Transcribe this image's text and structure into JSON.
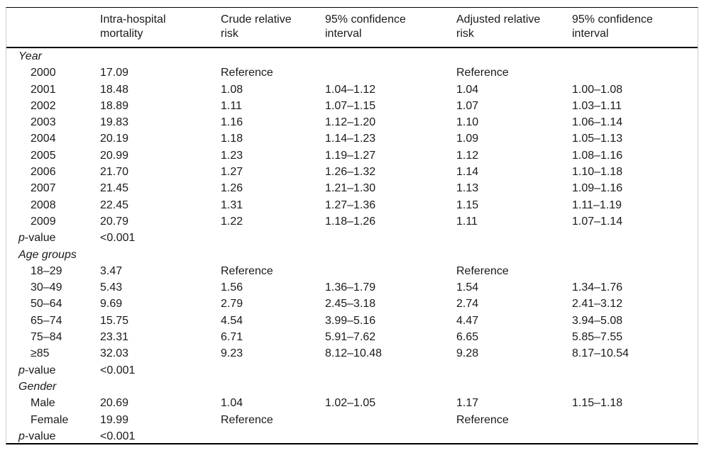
{
  "table": {
    "columns": [
      "",
      "Intra-hospital\nmortality",
      "Crude relative\nrisk",
      "95% confidence\ninterval",
      "Adjusted relative\nrisk",
      "95% confidence\ninterval"
    ],
    "sections": [
      {
        "title": "Year",
        "rows": [
          {
            "label": "2000",
            "mortality": "17.09",
            "crude_rr": "Reference",
            "crude_ci": "",
            "adjusted_rr": "Reference",
            "adjusted_ci": ""
          },
          {
            "label": "2001",
            "mortality": "18.48",
            "crude_rr": "1.08",
            "crude_ci": "1.04–1.12",
            "adjusted_rr": "1.04",
            "adjusted_ci": "1.00–1.08"
          },
          {
            "label": "2002",
            "mortality": "18.89",
            "crude_rr": "1.11",
            "crude_ci": "1.07–1.15",
            "adjusted_rr": "1.07",
            "adjusted_ci": "1.03–1.11"
          },
          {
            "label": "2003",
            "mortality": "19.83",
            "crude_rr": "1.16",
            "crude_ci": "1.12–1.20",
            "adjusted_rr": "1.10",
            "adjusted_ci": "1.06–1.14"
          },
          {
            "label": "2004",
            "mortality": "20.19",
            "crude_rr": "1.18",
            "crude_ci": "1.14–1.23",
            "adjusted_rr": "1.09",
            "adjusted_ci": "1.05–1.13"
          },
          {
            "label": "2005",
            "mortality": "20.99",
            "crude_rr": "1.23",
            "crude_ci": "1.19–1.27",
            "adjusted_rr": "1.12",
            "adjusted_ci": "1.08–1.16"
          },
          {
            "label": "2006",
            "mortality": "21.70",
            "crude_rr": "1.27",
            "crude_ci": "1.26–1.32",
            "adjusted_rr": "1.14",
            "adjusted_ci": "1.10–1.18"
          },
          {
            "label": "2007",
            "mortality": "21.45",
            "crude_rr": "1.26",
            "crude_ci": "1.21–1.30",
            "adjusted_rr": "1.13",
            "adjusted_ci": "1.09–1.16"
          },
          {
            "label": "2008",
            "mortality": "22.45",
            "crude_rr": "1.31",
            "crude_ci": "1.27–1.36",
            "adjusted_rr": "1.15",
            "adjusted_ci": "1.11–1.19"
          },
          {
            "label": "2009",
            "mortality": "20.79",
            "crude_rr": "1.22",
            "crude_ci": "1.18–1.26",
            "adjusted_rr": "1.11",
            "adjusted_ci": "1.07–1.14"
          }
        ],
        "p_label": "p-value",
        "p_value": "<0.001"
      },
      {
        "title": "Age groups",
        "rows": [
          {
            "label": "18–29",
            "mortality": "3.47",
            "crude_rr": "Reference",
            "crude_ci": "",
            "adjusted_rr": "Reference",
            "adjusted_ci": ""
          },
          {
            "label": "30–49",
            "mortality": "5.43",
            "crude_rr": "1.56",
            "crude_ci": "1.36–1.79",
            "adjusted_rr": "1.54",
            "adjusted_ci": "1.34–1.76"
          },
          {
            "label": "50–64",
            "mortality": "9.69",
            "crude_rr": "2.79",
            "crude_ci": "2.45–3.18",
            "adjusted_rr": "2.74",
            "adjusted_ci": "2.41–3.12"
          },
          {
            "label": "65–74",
            "mortality": "15.75",
            "crude_rr": "4.54",
            "crude_ci": "3.99–5.16",
            "adjusted_rr": "4.47",
            "adjusted_ci": "3.94–5.08"
          },
          {
            "label": "75–84",
            "mortality": "23.31",
            "crude_rr": "6.71",
            "crude_ci": "5.91–7.62",
            "adjusted_rr": "6.65",
            "adjusted_ci": "5.85–7.55"
          },
          {
            "label": "≥85",
            "mortality": "32.03",
            "crude_rr": "9.23",
            "crude_ci": "8.12–10.48",
            "adjusted_rr": "9.28",
            "adjusted_ci": "8.17–10.54"
          }
        ],
        "p_label": "p-value",
        "p_value": "<0.001"
      },
      {
        "title": "Gender",
        "rows": [
          {
            "label": "Male",
            "mortality": "20.69",
            "crude_rr": "1.04",
            "crude_ci": "1.02–1.05",
            "adjusted_rr": "1.17",
            "adjusted_ci": "1.15–1.18"
          },
          {
            "label": "Female",
            "mortality": "19.99",
            "crude_rr": "Reference",
            "crude_ci": "",
            "adjusted_rr": "Reference",
            "adjusted_ci": ""
          }
        ],
        "p_label": "p-value",
        "p_value": "<0.001"
      }
    ],
    "colors": {
      "rule": "#000000",
      "frame_border": "#cccccc",
      "text": "#1a1a1a"
    }
  }
}
